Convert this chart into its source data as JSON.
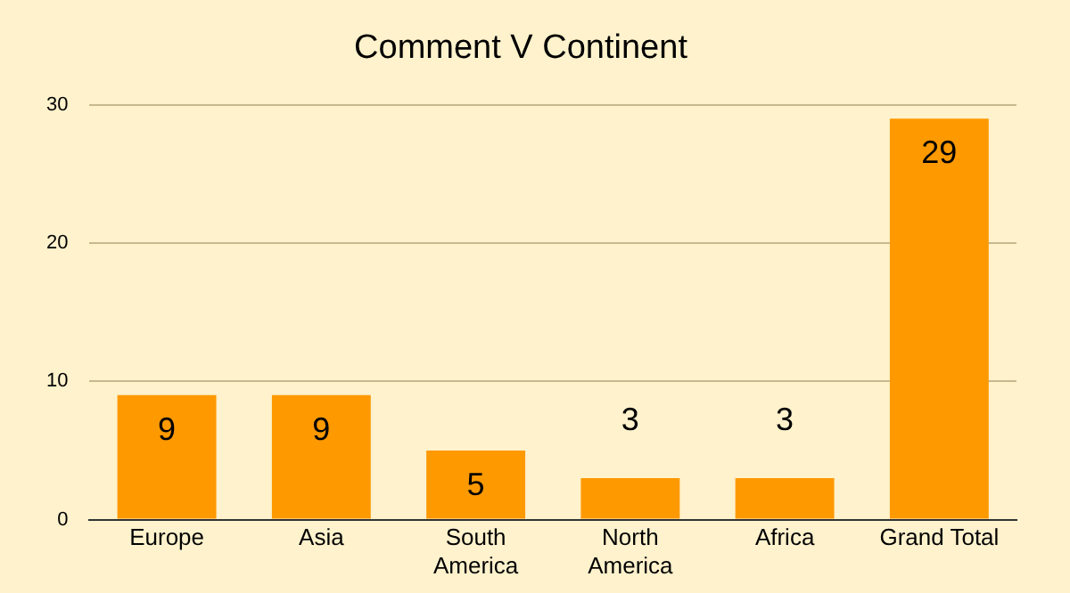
{
  "chart_data": {
    "type": "bar",
    "title": "Comment V Continent",
    "categories": [
      "Europe",
      "Asia",
      "South America",
      "North America",
      "Africa",
      "Grand Total"
    ],
    "values": [
      9,
      9,
      5,
      3,
      3,
      29
    ],
    "color": "#ff9900",
    "ylim": [
      0,
      30
    ],
    "yticks": [
      0,
      10,
      20,
      30
    ],
    "grid": "y",
    "legend": false,
    "data_labels": true
  }
}
